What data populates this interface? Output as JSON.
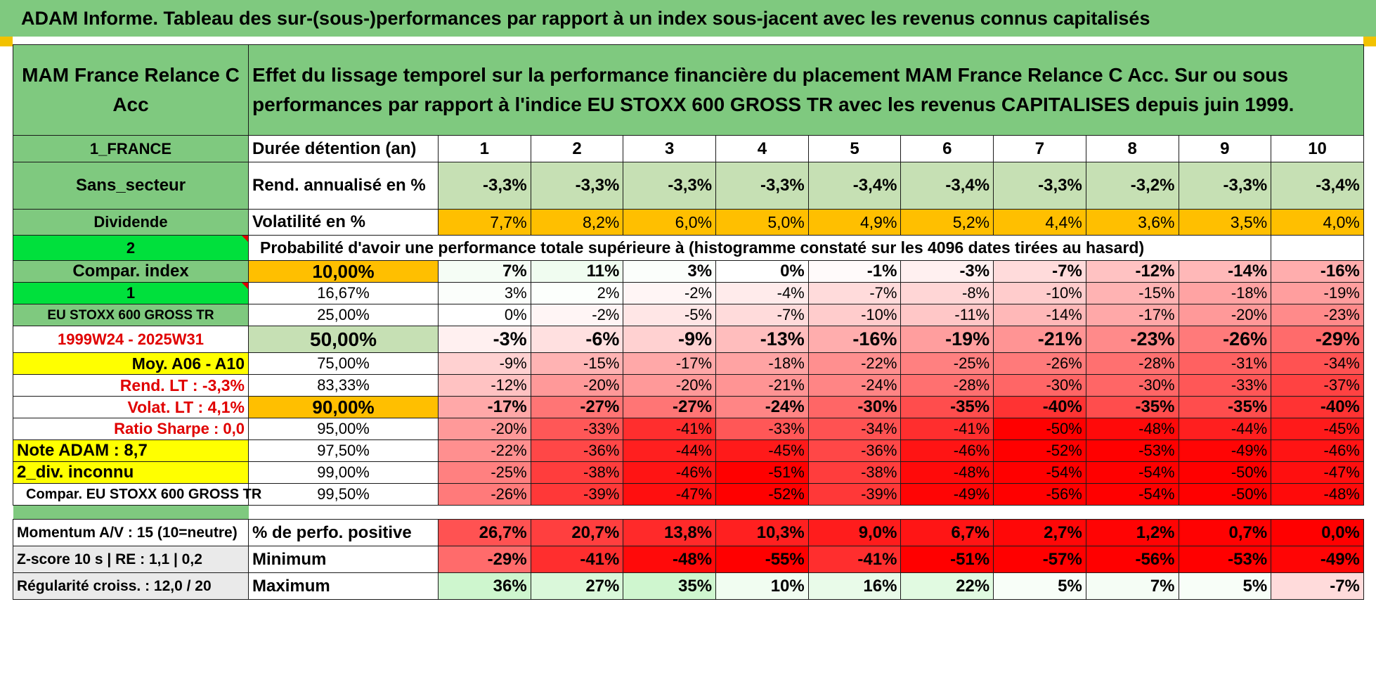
{
  "title": "ADAM Informe. Tableau des sur-(sous-)performances par rapport à un index sous-jacent avec les revenus connus capitalisés",
  "fund": {
    "name": "MAM France Relance C Acc",
    "description": "Effet du lissage temporel sur la performance financière du placement MAM France Relance C Acc. Sur ou sous performances par rapport à l'indice EU STOXX 600 GROSS TR avec les revenus CAPITALISES depuis juin 1999."
  },
  "left": {
    "country": "1_FRANCE",
    "sector": "Sans_secteur",
    "dividend": "Dividende",
    "two": "2",
    "compar_index": "Compar. index",
    "one": "1",
    "index_name": "EU STOXX 600 GROSS TR",
    "period": "1999W24 - 2025W31",
    "moy": "Moy. A06 - A10",
    "rend_lt": "Rend. LT :   -3,3%",
    "volat_lt": "Volat. LT :   4,1%",
    "sharpe": "Ratio Sharpe :   0,0",
    "note": "Note ADAM : 8,7",
    "div": "2_div. inconnu",
    "compar_full": "Compar. EU STOXX 600 GROSS TR"
  },
  "labels": {
    "duree": "Durée détention (an)",
    "rend": "Rend. annualisé en %",
    "vol": "Volatilité en %",
    "proba": "Probabilité d'avoir une performance totale supérieure à (histogramme constaté sur les 4096 dates tirées au hasard)"
  },
  "years": [
    "1",
    "2",
    "3",
    "4",
    "5",
    "6",
    "7",
    "8",
    "9",
    "10"
  ],
  "rend": [
    "-3,3%",
    "-3,3%",
    "-3,3%",
    "-3,3%",
    "-3,4%",
    "-3,4%",
    "-3,3%",
    "-3,2%",
    "-3,3%",
    "-3,4%"
  ],
  "vol": [
    "7,7%",
    "8,2%",
    "6,0%",
    "5,0%",
    "4,9%",
    "5,2%",
    "4,4%",
    "3,6%",
    "3,5%",
    "4,0%"
  ],
  "quantiles": [
    {
      "p": "10,00%",
      "vals": [
        "7%",
        "11%",
        "3%",
        "0%",
        "-1%",
        "-3%",
        "-7%",
        "-12%",
        "-14%",
        "-16%"
      ],
      "bold": true
    },
    {
      "p": "16,67%",
      "vals": [
        "3%",
        "2%",
        "-2%",
        "-4%",
        "-7%",
        "-8%",
        "-10%",
        "-15%",
        "-18%",
        "-19%"
      ],
      "bold": false
    },
    {
      "p": "25,00%",
      "vals": [
        "0%",
        "-2%",
        "-5%",
        "-7%",
        "-10%",
        "-11%",
        "-14%",
        "-17%",
        "-20%",
        "-23%"
      ],
      "bold": false
    },
    {
      "p": "50,00%",
      "vals": [
        "-3%",
        "-6%",
        "-9%",
        "-13%",
        "-16%",
        "-19%",
        "-21%",
        "-23%",
        "-26%",
        "-29%"
      ],
      "bold": true
    },
    {
      "p": "75,00%",
      "vals": [
        "-9%",
        "-15%",
        "-17%",
        "-18%",
        "-22%",
        "-25%",
        "-26%",
        "-28%",
        "-31%",
        "-34%"
      ],
      "bold": false
    },
    {
      "p": "83,33%",
      "vals": [
        "-12%",
        "-20%",
        "-20%",
        "-21%",
        "-24%",
        "-28%",
        "-30%",
        "-30%",
        "-33%",
        "-37%"
      ],
      "bold": false
    },
    {
      "p": "90,00%",
      "vals": [
        "-17%",
        "-27%",
        "-27%",
        "-24%",
        "-30%",
        "-35%",
        "-40%",
        "-35%",
        "-35%",
        "-40%"
      ],
      "bold": true
    },
    {
      "p": "95,00%",
      "vals": [
        "-20%",
        "-33%",
        "-41%",
        "-33%",
        "-34%",
        "-41%",
        "-50%",
        "-48%",
        "-44%",
        "-45%"
      ],
      "bold": false
    },
    {
      "p": "97,50%",
      "vals": [
        "-22%",
        "-36%",
        "-44%",
        "-45%",
        "-36%",
        "-46%",
        "-52%",
        "-53%",
        "-49%",
        "-46%"
      ],
      "bold": false
    },
    {
      "p": "99,00%",
      "vals": [
        "-25%",
        "-38%",
        "-46%",
        "-51%",
        "-38%",
        "-48%",
        "-54%",
        "-54%",
        "-50%",
        "-47%"
      ],
      "bold": false
    },
    {
      "p": "99,50%",
      "vals": [
        "-26%",
        "-39%",
        "-47%",
        "-52%",
        "-39%",
        "-49%",
        "-56%",
        "-54%",
        "-50%",
        "-48%"
      ],
      "bold": false
    }
  ],
  "footer": [
    {
      "left": "Momentum A/V : 15 (10=neutre)",
      "label": "% de perfo. positive",
      "vals": [
        "26,7%",
        "20,7%",
        "13,8%",
        "10,3%",
        "9,0%",
        "6,7%",
        "2,7%",
        "1,2%",
        "0,7%",
        "0,0%"
      ]
    },
    {
      "left": "Z-score 10 s | RE : 1,1 | 0,2",
      "label": "Minimum",
      "vals": [
        "-29%",
        "-41%",
        "-48%",
        "-55%",
        "-41%",
        "-51%",
        "-57%",
        "-56%",
        "-53%",
        "-49%"
      ]
    },
    {
      "left": "Régularité croiss. : 12,0 / 20",
      "label": "Maximum",
      "vals": [
        "36%",
        "27%",
        "35%",
        "10%",
        "16%",
        "22%",
        "5%",
        "7%",
        "5%",
        "-7%"
      ]
    }
  ]
}
